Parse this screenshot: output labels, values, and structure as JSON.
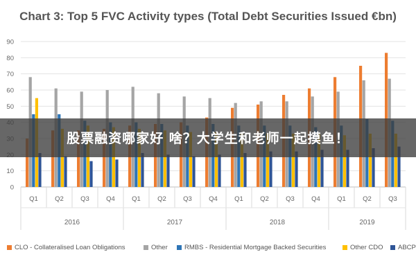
{
  "chart_data": {
    "type": "bar",
    "title": "Chart 3: Top 5 FVC Activity types (Total Debt Securities Issued €bn)",
    "categories": [
      "Q1",
      "Q2",
      "Q3",
      "Q4",
      "Q1",
      "Q2",
      "Q3",
      "Q4",
      "Q1",
      "Q2",
      "Q3",
      "Q4",
      "Q1",
      "Q2",
      "Q3"
    ],
    "groups": [
      {
        "label": "2016",
        "count": 4
      },
      {
        "label": "2017",
        "count": 4
      },
      {
        "label": "2018",
        "count": 4
      },
      {
        "label": "2019",
        "count": 3
      }
    ],
    "ylim": [
      0,
      90
    ],
    "yticks": [
      0,
      10,
      20,
      30,
      40,
      50,
      60,
      70,
      80,
      90
    ],
    "grid": true,
    "legend_position": "bottom",
    "series": [
      {
        "name": "CLO - Collateralised Loan Obligations",
        "color": "#ED7D31",
        "values": [
          30,
          35,
          35,
          36,
          38,
          39,
          40,
          43,
          49,
          51,
          57,
          61,
          68,
          75,
          83
        ]
      },
      {
        "name": "Other",
        "color": "#A5A5A5",
        "values": [
          68,
          61,
          59,
          60,
          62,
          58,
          56,
          55,
          52,
          53,
          53,
          56,
          59,
          66,
          67
        ]
      },
      {
        "name": "RMBS - Residential Mortgage Backed Securities",
        "color": "#2E75B6",
        "values": [
          45,
          45,
          41,
          40,
          40,
          39,
          38,
          39,
          38,
          38,
          38,
          37,
          38,
          42,
          41
        ]
      },
      {
        "name": "Other CDO",
        "color": "#FFC000",
        "values": [
          55,
          36,
          38,
          37,
          36,
          35,
          34,
          34,
          33,
          33,
          33,
          33,
          32,
          33,
          33
        ]
      },
      {
        "name": "ABCP",
        "color": "#2F5597",
        "values": [
          21,
          19,
          16,
          17,
          21,
          20,
          19,
          20,
          21,
          22,
          22,
          23,
          23,
          24,
          25
        ]
      }
    ]
  },
  "overlay": {
    "text": "股票融资哪家好 啥？大学生和老师一起摸鱼！"
  }
}
